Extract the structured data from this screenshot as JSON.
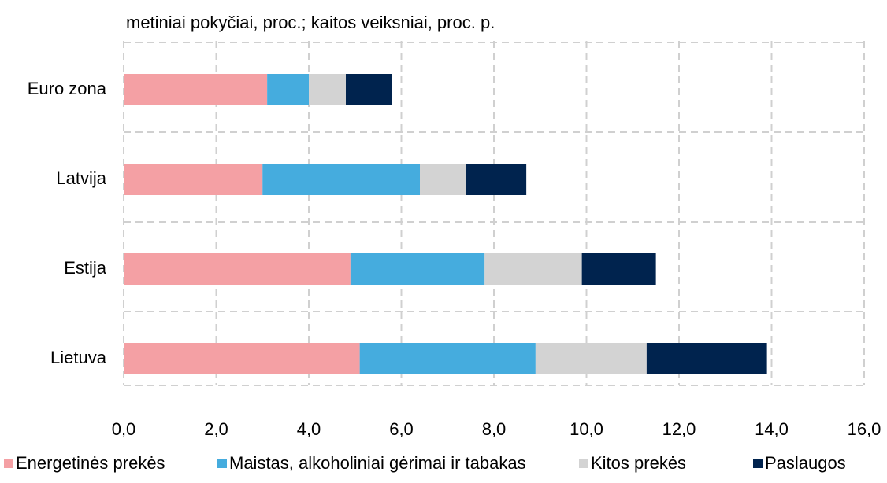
{
  "chart_data": {
    "type": "stacked_barh",
    "title": "metiniai pokyčiai, proc.; kaitos veiksniai, proc. p.",
    "categories": [
      "Euro zona",
      "Latvija",
      "Estija",
      "Lietuva"
    ],
    "series": [
      {
        "name": "Energetinės prekės",
        "color": "#f4a0a4",
        "values": [
          3.1,
          3.0,
          4.9,
          5.1
        ]
      },
      {
        "name": "Maistas, alkoholiniai gėrimai ir tabakas",
        "color": "#45acde",
        "values": [
          0.9,
          3.4,
          2.9,
          3.8
        ]
      },
      {
        "name": "Kitos prekės",
        "color": "#d3d3d3",
        "values": [
          0.8,
          1.0,
          2.1,
          2.4
        ]
      },
      {
        "name": "Paslaugos",
        "color": "#00234e",
        "values": [
          1.0,
          1.3,
          1.6,
          2.6
        ]
      }
    ],
    "xlim": [
      0,
      16
    ],
    "xticks": [
      {
        "value": 0,
        "label": "0,0"
      },
      {
        "value": 2,
        "label": "2,0"
      },
      {
        "value": 4,
        "label": "4,0"
      },
      {
        "value": 6,
        "label": "6,0"
      },
      {
        "value": 8,
        "label": "8,0"
      },
      {
        "value": 10,
        "label": "10,0"
      },
      {
        "value": 12,
        "label": "12,0"
      },
      {
        "value": 14,
        "label": "14,0"
      },
      {
        "value": 16,
        "label": "16,0"
      }
    ],
    "grid": true,
    "legend": "bottom"
  }
}
